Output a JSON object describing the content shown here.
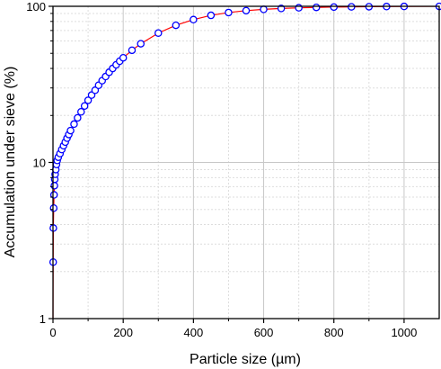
{
  "chart_data": {
    "type": "scatter",
    "xlabel": "Particle size (µm)",
    "ylabel": "Accumulation under sieve (%)",
    "xlim": [
      0,
      1100
    ],
    "ylim": [
      1,
      100
    ],
    "y_scale": "log",
    "grid": true,
    "minor_grid": true,
    "x_ticks": [
      0,
      200,
      400,
      600,
      800,
      1000
    ],
    "x_tick_labels": [
      "0",
      "200",
      "400",
      "600",
      "800",
      "1000"
    ],
    "y_ticks": [
      1,
      10,
      100
    ],
    "y_tick_labels": [
      "1",
      "10",
      "100"
    ],
    "colors": {
      "marker_edge": "#0000ff",
      "marker_fill": "#ffffff",
      "fit_line": "#ff0000",
      "grid": "#c8c8c8"
    },
    "series": [
      {
        "kind": "markers",
        "x": [
          0.5,
          1,
          2,
          3,
          4,
          5,
          6,
          8,
          10,
          12,
          15,
          20,
          25,
          30,
          35,
          40,
          45,
          50,
          60,
          70,
          80,
          90,
          100,
          110,
          120,
          130,
          140,
          150,
          160,
          170,
          180,
          190,
          200,
          225,
          250,
          300,
          350,
          400,
          450,
          500,
          550,
          600,
          650,
          700,
          750,
          800,
          850,
          900,
          950,
          1000,
          1100
        ],
        "y": [
          2.3,
          3.8,
          5.1,
          6.2,
          7.1,
          7.8,
          8.4,
          9.0,
          9.7,
          10.3,
          10.8,
          11.4,
          12.1,
          12.8,
          13.5,
          14.3,
          15.1,
          16.0,
          17.6,
          19.3,
          21.1,
          23.0,
          25.0,
          27.0,
          29.0,
          31.2,
          33.4,
          35.5,
          37.8,
          40.0,
          42.2,
          44.5,
          46.8,
          52.3,
          57.6,
          67.4,
          75.6,
          82.2,
          87.5,
          91.2,
          93.8,
          95.6,
          96.9,
          97.8,
          98.4,
          98.9,
          99.2,
          99.4,
          99.6,
          99.8,
          99.9
        ]
      },
      {
        "kind": "fit-line",
        "x": [
          0.05,
          0.1,
          0.2,
          0.5,
          1,
          2,
          3,
          4,
          5,
          6,
          8,
          10,
          12,
          15,
          20,
          25,
          30,
          35,
          40,
          45,
          50,
          60,
          70,
          80,
          90,
          100,
          110,
          120,
          130,
          140,
          150,
          160,
          170,
          180,
          190,
          200,
          225,
          250,
          300,
          350,
          400,
          450,
          500,
          550,
          600,
          650,
          700,
          750,
          800,
          850,
          900,
          950,
          1000,
          1100
        ],
        "y": [
          1.0,
          1.2,
          1.5,
          2.3,
          3.8,
          5.1,
          6.2,
          7.1,
          7.8,
          8.4,
          9.0,
          9.7,
          10.3,
          10.8,
          11.4,
          12.1,
          12.8,
          13.5,
          14.3,
          15.1,
          16.0,
          17.6,
          19.3,
          21.1,
          23.0,
          25.0,
          27.0,
          29.0,
          31.2,
          33.4,
          35.5,
          37.8,
          40.0,
          42.2,
          44.5,
          46.8,
          52.3,
          57.6,
          67.4,
          75.6,
          82.2,
          87.5,
          91.2,
          93.8,
          95.6,
          96.9,
          97.8,
          98.4,
          98.9,
          99.2,
          99.4,
          99.6,
          99.8,
          99.9
        ]
      }
    ]
  }
}
